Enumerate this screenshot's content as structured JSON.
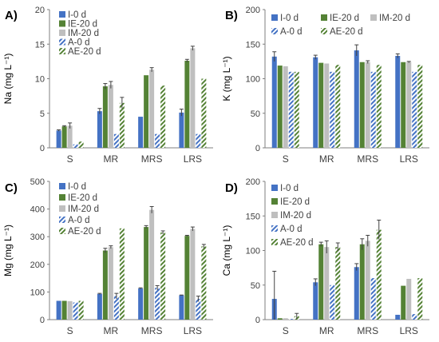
{
  "figure": {
    "series_styles": [
      {
        "color": "#4472c4",
        "pattern": "solid"
      },
      {
        "color": "#548235",
        "pattern": "solid"
      },
      {
        "color": "#bfbfbf",
        "pattern": "solid"
      },
      {
        "color": "#4472c4",
        "pattern": "hatch"
      },
      {
        "color": "#548235",
        "pattern": "hatch"
      }
    ]
  },
  "chart_data": [
    {
      "type": "bar",
      "panel_label": "A)",
      "ylabel": "Na (mg L⁻¹)",
      "ylim": [
        0,
        20
      ],
      "yticks": [
        0,
        5,
        10,
        15,
        20
      ],
      "categories": [
        "S",
        "MR",
        "MRS",
        "LRS"
      ],
      "legend_position": "left",
      "series": [
        {
          "name": "I-0 d",
          "values": [
            2.5,
            5.3,
            4.5,
            5.1
          ],
          "errors": [
            0.1,
            0.4,
            0.0,
            0.5
          ]
        },
        {
          "name": "IE-20 d",
          "values": [
            3.1,
            8.9,
            10.5,
            12.6
          ],
          "errors": [
            0.1,
            0.4,
            0.0,
            0.2
          ]
        },
        {
          "name": "IM-20 d",
          "values": [
            3.2,
            9.1,
            11.3,
            14.4
          ],
          "errors": [
            0.4,
            0.5,
            0.3,
            0.3
          ]
        },
        {
          "name": "A-0 d",
          "values": [
            0.5,
            2.0,
            2.0,
            2.0
          ],
          "errors": [
            0,
            0,
            0,
            0
          ]
        },
        {
          "name": "AE-20 d",
          "values": [
            0.9,
            6.5,
            9.0,
            10.0
          ],
          "errors": [
            0,
            0.8,
            0,
            0
          ]
        }
      ]
    },
    {
      "type": "bar",
      "panel_label": "B)",
      "ylabel": "K (mg L⁻¹)",
      "ylim": [
        0,
        200
      ],
      "yticks": [
        0,
        50,
        100,
        150,
        200
      ],
      "categories": [
        "S",
        "MR",
        "MRS",
        "LRS"
      ],
      "legend_position": "top",
      "series": [
        {
          "name": "I-0 d",
          "values": [
            132,
            131,
            141,
            133
          ],
          "errors": [
            7,
            3,
            8,
            3
          ]
        },
        {
          "name": "IE-20 d",
          "values": [
            119,
            123,
            124,
            124
          ],
          "errors": [
            0,
            0,
            0,
            0
          ]
        },
        {
          "name": "IM-20 d",
          "values": [
            118,
            122,
            124,
            124
          ],
          "errors": [
            0,
            0,
            2,
            1
          ]
        },
        {
          "name": "A-0 d",
          "values": [
            110,
            110,
            110,
            110
          ],
          "errors": [
            0,
            0,
            0,
            0
          ]
        },
        {
          "name": "AE-20 d",
          "values": [
            110,
            120,
            120,
            120
          ],
          "errors": [
            0,
            0,
            0,
            0
          ]
        }
      ]
    },
    {
      "type": "bar",
      "panel_label": "C)",
      "ylabel": "Mg (mg L⁻¹)",
      "ylim": [
        0,
        500
      ],
      "yticks": [
        0,
        100,
        200,
        300,
        400,
        500
      ],
      "categories": [
        "S",
        "MR",
        "MRS",
        "LRS"
      ],
      "legend_position": "left",
      "series": [
        {
          "name": "I-0 d",
          "values": [
            68,
            93,
            113,
            88
          ],
          "errors": [
            0,
            2,
            2,
            1
          ]
        },
        {
          "name": "IE-20 d",
          "values": [
            68,
            250,
            335,
            303
          ],
          "errors": [
            0,
            8,
            5,
            2
          ]
        },
        {
          "name": "IM-20 d",
          "values": [
            67,
            262,
            397,
            328
          ],
          "errors": [
            0,
            5,
            12,
            7
          ]
        },
        {
          "name": "A-0 d",
          "values": [
            62,
            85,
            115,
            75
          ],
          "errors": [
            0,
            10,
            8,
            10
          ]
        },
        {
          "name": "AE-20 d",
          "values": [
            68,
            330,
            315,
            265
          ],
          "errors": [
            0,
            0,
            6,
            7
          ]
        }
      ]
    },
    {
      "type": "bar",
      "panel_label": "D)",
      "ylabel": "Ca (mg L⁻¹)",
      "ylim": [
        0,
        200
      ],
      "yticks": [
        0,
        50,
        100,
        150,
        200
      ],
      "categories": [
        "S",
        "MR",
        "MRS",
        "LRS"
      ],
      "legend_position": "left",
      "series": [
        {
          "name": "I-0 d",
          "values": [
            30,
            54,
            76,
            7
          ],
          "errors": [
            40,
            5,
            5,
            0
          ]
        },
        {
          "name": "IE-20 d",
          "values": [
            2,
            109,
            109,
            49
          ],
          "errors": [
            0,
            3,
            8,
            0
          ]
        },
        {
          "name": "IM-20 d",
          "values": [
            2,
            105,
            114,
            59
          ],
          "errors": [
            0,
            9,
            8,
            0
          ]
        },
        {
          "name": "A-0 d",
          "values": [
            1,
            50,
            60,
            8
          ],
          "errors": [
            0,
            0,
            0,
            0
          ]
        },
        {
          "name": "AE-20 d",
          "values": [
            5,
            105,
            130,
            60
          ],
          "errors": [
            4,
            6,
            14,
            0
          ]
        }
      ]
    }
  ]
}
